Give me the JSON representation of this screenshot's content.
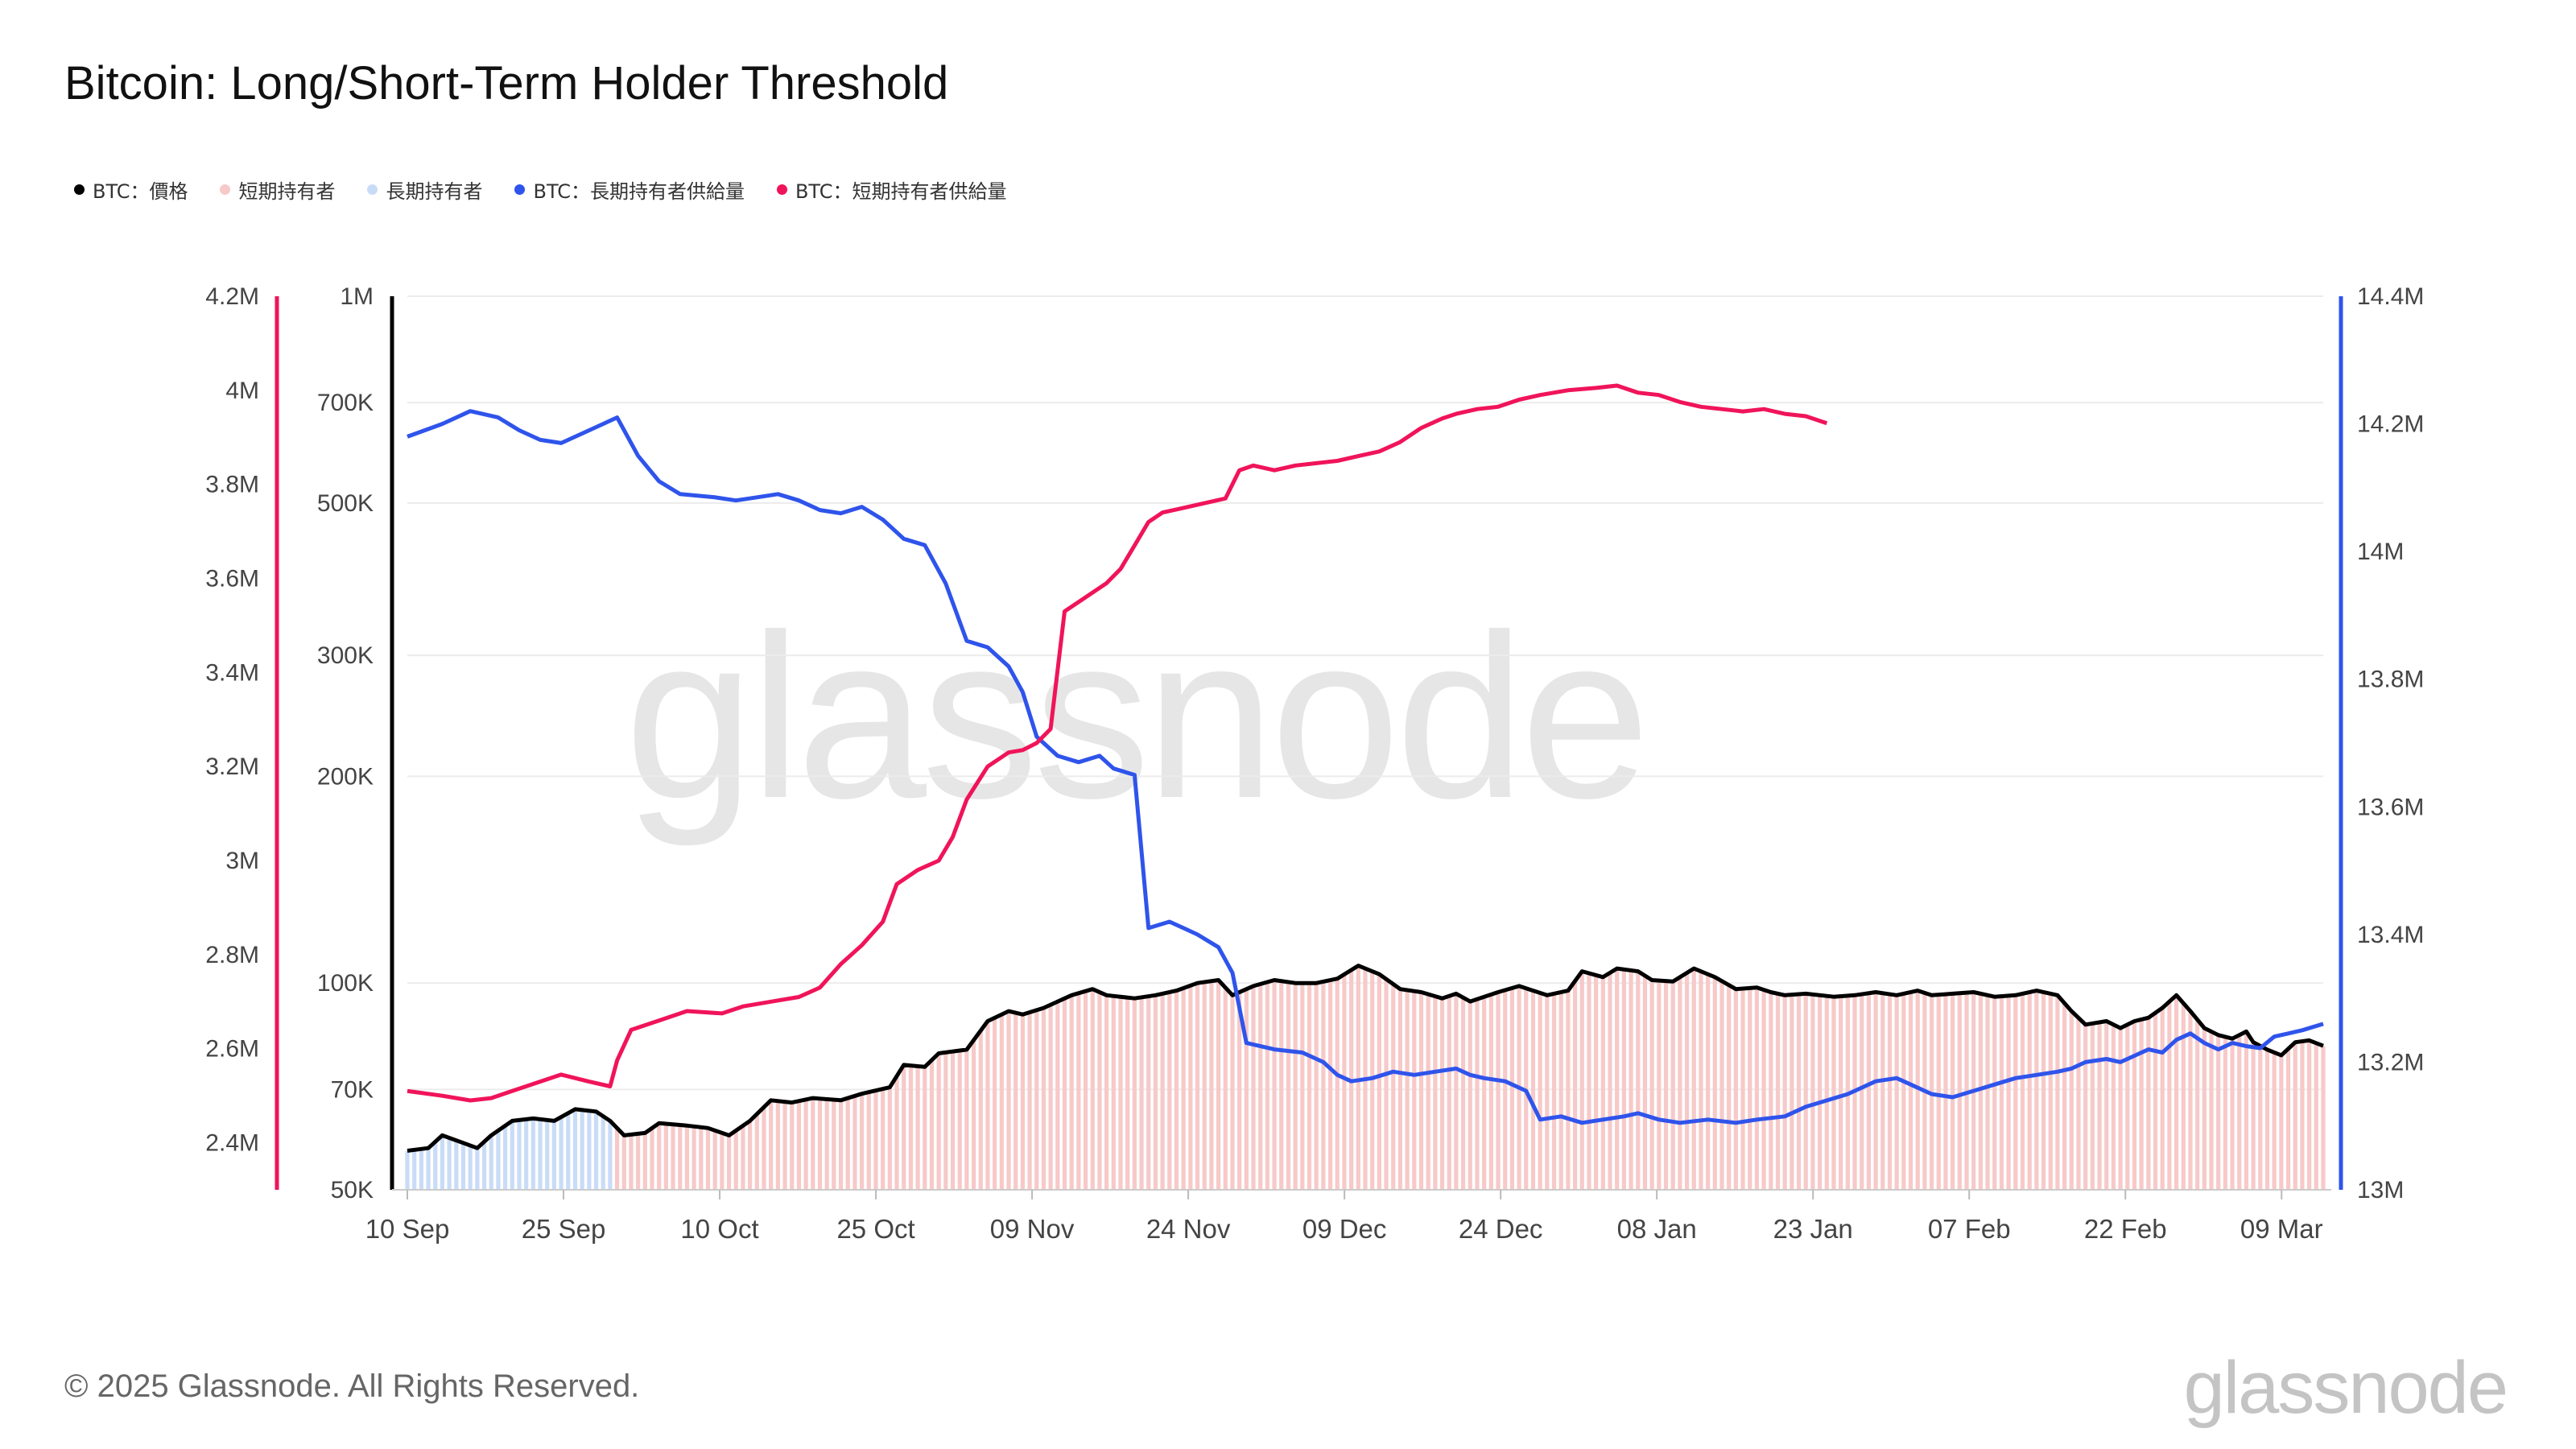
{
  "title": "Bitcoin: Long/Short-Term Holder Threshold",
  "copyright": "© 2025 Glassnode. All Rights Reserved.",
  "brand": "glassnode",
  "watermark": "glassnode",
  "legend": [
    {
      "label": "BTC：價格",
      "color": "#000000"
    },
    {
      "label": "短期持有者",
      "color": "#f7c9c9"
    },
    {
      "label": "長期持有者",
      "color": "#c9dcf7"
    },
    {
      "label": "BTC：長期持有者供給量",
      "color": "#2f54eb"
    },
    {
      "label": "BTC：短期持有者供給量",
      "color": "#f0145a"
    }
  ],
  "chart_data": {
    "type": "line",
    "x_axis": {
      "tick_labels": [
        "10 Sep",
        "25 Sep",
        "10 Oct",
        "25 Oct",
        "09 Nov",
        "24 Nov",
        "09 Dec",
        "24 Dec",
        "08 Jan",
        "23 Jan",
        "07 Feb",
        "22 Feb",
        "09 Mar"
      ],
      "tick_days": [
        0,
        15,
        30,
        45,
        60,
        75,
        90,
        105,
        120,
        135,
        150,
        165,
        180
      ],
      "range_days": [
        0,
        184
      ]
    },
    "axes": {
      "price": {
        "scale": "log",
        "min": 50000,
        "max": 1000000,
        "tick_values": [
          50000,
          70000,
          100000,
          200000,
          300000,
          500000,
          700000,
          1000000
        ],
        "tick_labels": [
          "50K",
          "70K",
          "100K",
          "200K",
          "300K",
          "500K",
          "700K",
          "1M"
        ],
        "color": "#000000"
      },
      "sth_supply": {
        "scale": "linear",
        "min": 2300000,
        "max": 4200000,
        "tick_values": [
          2400000,
          2600000,
          2800000,
          3000000,
          3200000,
          3400000,
          3600000,
          3800000,
          4000000,
          4200000
        ],
        "tick_labels": [
          "2.4M",
          "2.6M",
          "2.8M",
          "3M",
          "3.2M",
          "3.4M",
          "3.6M",
          "3.8M",
          "4M",
          "4.2M"
        ],
        "color": "#f0145a"
      },
      "lth_supply": {
        "scale": "linear",
        "min": 13000000,
        "max": 14400000,
        "tick_values": [
          13000000,
          13200000,
          13400000,
          13600000,
          13800000,
          14000000,
          14200000,
          14400000
        ],
        "tick_labels": [
          "13M",
          "13.2M",
          "13.4M",
          "13.6M",
          "13.8M",
          "14M",
          "14.2M",
          "14.4M"
        ],
        "color": "#2f54eb"
      }
    },
    "regime_switch_day": 30,
    "series": [
      {
        "name": "BTC：價格",
        "axis": "price",
        "color": "#000000",
        "points": [
          [
            0,
            57000
          ],
          [
            3,
            57500
          ],
          [
            5,
            60000
          ],
          [
            8,
            58500
          ],
          [
            10,
            57500
          ],
          [
            12,
            60000
          ],
          [
            15,
            63000
          ],
          [
            18,
            63500
          ],
          [
            21,
            63000
          ],
          [
            24,
            65500
          ],
          [
            27,
            65000
          ],
          [
            29,
            63000
          ],
          [
            31,
            60000
          ],
          [
            34,
            60500
          ],
          [
            36,
            62500
          ],
          [
            40,
            62000
          ],
          [
            43,
            61500
          ],
          [
            46,
            60000
          ],
          [
            49,
            63000
          ],
          [
            52,
            67500
          ],
          [
            55,
            67000
          ],
          [
            58,
            68000
          ],
          [
            62,
            67500
          ],
          [
            65,
            69000
          ],
          [
            69,
            70500
          ],
          [
            71,
            76000
          ],
          [
            74,
            75500
          ],
          [
            76,
            79000
          ],
          [
            80,
            80000
          ],
          [
            83,
            88000
          ],
          [
            86,
            91000
          ],
          [
            88,
            90000
          ],
          [
            91,
            92000
          ],
          [
            95,
            96000
          ],
          [
            98,
            98000
          ],
          [
            100,
            96000
          ],
          [
            104,
            95000
          ],
          [
            107,
            96000
          ],
          [
            110,
            97500
          ],
          [
            113,
            100000
          ],
          [
            116,
            101000
          ],
          [
            118,
            96000
          ],
          [
            121,
            99000
          ],
          [
            124,
            101000
          ],
          [
            127,
            100000
          ],
          [
            130,
            100000
          ],
          [
            133,
            101500
          ],
          [
            136,
            106000
          ],
          [
            139,
            103000
          ],
          [
            142,
            98000
          ],
          [
            145,
            97000
          ],
          [
            148,
            95000
          ],
          [
            150,
            96500
          ],
          [
            152,
            94000
          ],
          [
            156,
            97000
          ],
          [
            159,
            99000
          ],
          [
            163,
            96000
          ],
          [
            166,
            97500
          ],
          [
            168,
            104000
          ],
          [
            171,
            102000
          ],
          [
            173,
            105000
          ],
          [
            176,
            104000
          ],
          [
            178,
            101000
          ],
          [
            181,
            100500
          ],
          [
            184,
            105000
          ],
          [
            187,
            102000
          ],
          [
            190,
            98000
          ],
          [
            193,
            98500
          ],
          [
            195,
            97000
          ],
          [
            197,
            96000
          ],
          [
            200,
            96500
          ],
          [
            204,
            95500
          ],
          [
            207,
            96000
          ],
          [
            210,
            97000
          ],
          [
            213,
            96000
          ],
          [
            216,
            97500
          ],
          [
            218,
            96000
          ],
          [
            221,
            96500
          ],
          [
            224,
            97000
          ],
          [
            227,
            95500
          ],
          [
            230,
            96000
          ],
          [
            233,
            97500
          ],
          [
            236,
            96000
          ],
          [
            238,
            91000
          ],
          [
            240,
            87000
          ],
          [
            243,
            88000
          ],
          [
            245,
            86000
          ],
          [
            247,
            88000
          ],
          [
            249,
            89000
          ],
          [
            251,
            92000
          ],
          [
            253,
            96000
          ],
          [
            255,
            91000
          ],
          [
            257,
            86000
          ],
          [
            259,
            84000
          ],
          [
            261,
            83000
          ],
          [
            263,
            85000
          ],
          [
            264,
            82000
          ],
          [
            266,
            80000
          ],
          [
            268,
            78500
          ],
          [
            270,
            82000
          ],
          [
            272,
            82500
          ],
          [
            274,
            81000
          ]
        ],
        "values_note": ""
      },
      {
        "name": "BTC：長期持有者供給量",
        "axis": "lth_supply",
        "color": "#2f54eb",
        "points": [
          [
            0,
            14180000
          ],
          [
            5,
            14200000
          ],
          [
            9,
            14220000
          ],
          [
            13,
            14210000
          ],
          [
            16,
            14190000
          ],
          [
            19,
            14175000
          ],
          [
            22,
            14170000
          ],
          [
            25,
            14185000
          ],
          [
            28,
            14200000
          ],
          [
            30,
            14210000
          ],
          [
            33,
            14150000
          ],
          [
            36,
            14110000
          ],
          [
            39,
            14090000
          ],
          [
            44,
            14085000
          ],
          [
            47,
            14080000
          ],
          [
            50,
            14085000
          ],
          [
            53,
            14090000
          ],
          [
            56,
            14080000
          ],
          [
            59,
            14065000
          ],
          [
            62,
            14060000
          ],
          [
            65,
            14070000
          ],
          [
            68,
            14050000
          ],
          [
            71,
            14020000
          ],
          [
            74,
            14010000
          ],
          [
            77,
            13950000
          ],
          [
            80,
            13860000
          ],
          [
            83,
            13850000
          ],
          [
            86,
            13820000
          ],
          [
            88,
            13780000
          ],
          [
            90,
            13710000
          ],
          [
            93,
            13680000
          ],
          [
            96,
            13670000
          ],
          [
            99,
            13680000
          ],
          [
            101,
            13660000
          ],
          [
            104,
            13650000
          ],
          [
            106,
            13410000
          ],
          [
            109,
            13420000
          ],
          [
            111,
            13410000
          ],
          [
            113,
            13400000
          ],
          [
            116,
            13380000
          ],
          [
            118,
            13340000
          ],
          [
            120,
            13230000
          ],
          [
            124,
            13220000
          ],
          [
            128,
            13215000
          ],
          [
            131,
            13200000
          ],
          [
            133,
            13180000
          ],
          [
            135,
            13170000
          ],
          [
            138,
            13175000
          ],
          [
            141,
            13185000
          ],
          [
            144,
            13180000
          ],
          [
            147,
            13185000
          ],
          [
            150,
            13190000
          ],
          [
            152,
            13180000
          ],
          [
            154,
            13175000
          ],
          [
            157,
            13170000
          ],
          [
            160,
            13155000
          ],
          [
            162,
            13110000
          ],
          [
            165,
            13115000
          ],
          [
            168,
            13105000
          ],
          [
            171,
            13110000
          ],
          [
            174,
            13115000
          ],
          [
            176,
            13120000
          ],
          [
            179,
            13110000
          ],
          [
            182,
            13105000
          ],
          [
            186,
            13110000
          ],
          [
            190,
            13105000
          ],
          [
            193,
            13110000
          ],
          [
            197,
            13115000
          ],
          [
            200,
            13130000
          ],
          [
            203,
            13140000
          ],
          [
            206,
            13150000
          ],
          [
            210,
            13170000
          ],
          [
            213,
            13175000
          ],
          [
            215,
            13165000
          ],
          [
            218,
            13150000
          ],
          [
            221,
            13145000
          ],
          [
            224,
            13155000
          ],
          [
            227,
            13165000
          ],
          [
            230,
            13175000
          ],
          [
            233,
            13180000
          ],
          [
            236,
            13185000
          ],
          [
            238,
            13190000
          ],
          [
            240,
            13200000
          ],
          [
            243,
            13205000
          ],
          [
            245,
            13200000
          ],
          [
            247,
            13210000
          ],
          [
            249,
            13220000
          ],
          [
            251,
            13215000
          ],
          [
            253,
            13235000
          ],
          [
            255,
            13245000
          ],
          [
            257,
            13230000
          ],
          [
            259,
            13220000
          ],
          [
            261,
            13230000
          ],
          [
            263,
            13225000
          ],
          [
            265,
            13222000
          ],
          [
            267,
            13240000
          ],
          [
            269,
            13245000
          ],
          [
            271,
            13250000
          ],
          [
            274,
            13260000
          ]
        ]
      },
      {
        "name": "BTC：短期持有者供給量",
        "axis": "sth_supply",
        "color": "#f0145a",
        "points": [
          [
            0,
            2510000
          ],
          [
            5,
            2500000
          ],
          [
            9,
            2490000
          ],
          [
            12,
            2495000
          ],
          [
            15,
            2510000
          ],
          [
            19,
            2530000
          ],
          [
            22,
            2545000
          ],
          [
            26,
            2530000
          ],
          [
            29,
            2520000
          ],
          [
            30,
            2575000
          ],
          [
            32,
            2640000
          ],
          [
            36,
            2660000
          ],
          [
            40,
            2680000
          ],
          [
            45,
            2675000
          ],
          [
            48,
            2690000
          ],
          [
            52,
            2700000
          ],
          [
            56,
            2710000
          ],
          [
            59,
            2730000
          ],
          [
            62,
            2780000
          ],
          [
            65,
            2820000
          ],
          [
            68,
            2870000
          ],
          [
            70,
            2950000
          ],
          [
            73,
            2980000
          ],
          [
            76,
            3000000
          ],
          [
            78,
            3050000
          ],
          [
            80,
            3130000
          ],
          [
            83,
            3200000
          ],
          [
            86,
            3230000
          ],
          [
            88,
            3235000
          ],
          [
            90,
            3250000
          ],
          [
            92,
            3280000
          ],
          [
            94,
            3530000
          ],
          [
            97,
            3560000
          ],
          [
            100,
            3590000
          ],
          [
            102,
            3620000
          ],
          [
            104,
            3670000
          ],
          [
            106,
            3720000
          ],
          [
            108,
            3740000
          ],
          [
            111,
            3750000
          ],
          [
            114,
            3760000
          ],
          [
            117,
            3770000
          ],
          [
            119,
            3830000
          ],
          [
            121,
            3840000
          ],
          [
            124,
            3830000
          ],
          [
            127,
            3840000
          ],
          [
            130,
            3845000
          ],
          [
            133,
            3850000
          ],
          [
            136,
            3860000
          ],
          [
            139,
            3870000
          ],
          [
            142,
            3890000
          ],
          [
            145,
            3920000
          ],
          [
            148,
            3940000
          ],
          [
            150,
            3950000
          ],
          [
            153,
            3960000
          ],
          [
            156,
            3965000
          ],
          [
            159,
            3980000
          ],
          [
            162,
            3990000
          ],
          [
            166,
            4000000
          ],
          [
            170,
            4005000
          ],
          [
            173,
            4010000
          ],
          [
            176,
            3995000
          ],
          [
            179,
            3990000
          ],
          [
            182,
            3975000
          ],
          [
            185,
            3965000
          ],
          [
            188,
            3960000
          ],
          [
            191,
            3955000
          ],
          [
            194,
            3960000
          ],
          [
            197,
            3950000
          ],
          [
            200,
            3945000
          ],
          [
            203,
            3930000
          ]
        ]
      }
    ]
  }
}
